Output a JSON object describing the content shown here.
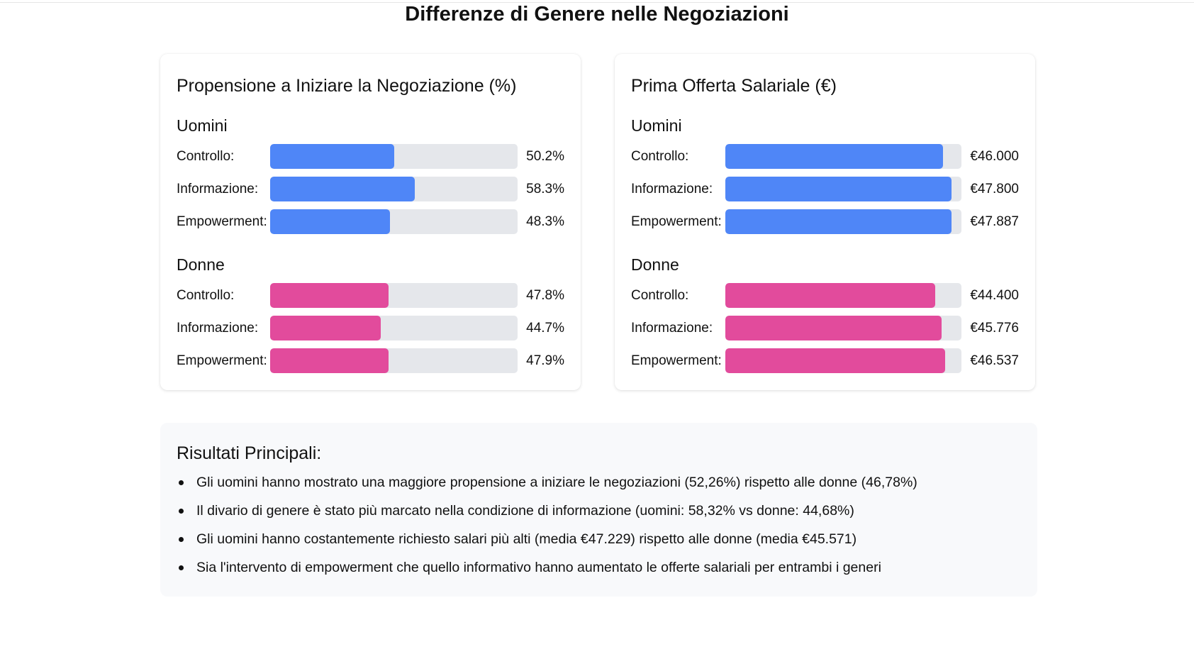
{
  "title": "Differenze di Genere nelle Negoziazioni",
  "chart_data": [
    {
      "type": "bar",
      "orientation": "horizontal",
      "title": "Propensione a Iniziare la Negoziazione (%)",
      "unit": "%",
      "xlim": [
        0,
        100
      ],
      "groups": [
        {
          "name": "Uomini",
          "color": "#4f86f7",
          "items": [
            {
              "label": "Controllo:",
              "value": 50.2,
              "display": "50.2%"
            },
            {
              "label": "Informazione:",
              "value": 58.3,
              "display": "58.3%"
            },
            {
              "label": "Empowerment:",
              "value": 48.3,
              "display": "48.3%"
            }
          ]
        },
        {
          "name": "Donne",
          "color": "#e24b9c",
          "items": [
            {
              "label": "Controllo:",
              "value": 47.8,
              "display": "47.8%"
            },
            {
              "label": "Informazione:",
              "value": 44.7,
              "display": "44.7%"
            },
            {
              "label": "Empowerment:",
              "value": 47.9,
              "display": "47.9%"
            }
          ]
        }
      ]
    },
    {
      "type": "bar",
      "orientation": "horizontal",
      "title": "Prima Offerta Salariale (€)",
      "unit": "€",
      "xlim": [
        0,
        50000
      ],
      "groups": [
        {
          "name": "Uomini",
          "color": "#4f86f7",
          "items": [
            {
              "label": "Controllo:",
              "value": 46000,
              "display": "€46.000"
            },
            {
              "label": "Informazione:",
              "value": 47800,
              "display": "€47.800"
            },
            {
              "label": "Empowerment:",
              "value": 47887,
              "display": "€47.887"
            }
          ]
        },
        {
          "name": "Donne",
          "color": "#e24b9c",
          "items": [
            {
              "label": "Controllo:",
              "value": 44400,
              "display": "€44.400"
            },
            {
              "label": "Informazione:",
              "value": 45776,
              "display": "€45.776"
            },
            {
              "label": "Empowerment:",
              "value": 46537,
              "display": "€46.537"
            }
          ]
        }
      ]
    }
  ],
  "results": {
    "title": "Risultati Principali:",
    "items": [
      "Gli uomini hanno mostrato una maggiore propensione a iniziare le negoziazioni (52,26%) rispetto alle donne (46,78%)",
      "Il divario di genere è stato più marcato nella condizione di informazione (uomini: 58,32% vs donne: 44,68%)",
      "Gli uomini hanno costantemente richiesto salari più alti (media €47.229) rispetto alle donne (media €45.571)",
      "Sia l'intervento di empowerment che quello informativo hanno aumentato le offerte salariali per entrambi i generi"
    ]
  }
}
